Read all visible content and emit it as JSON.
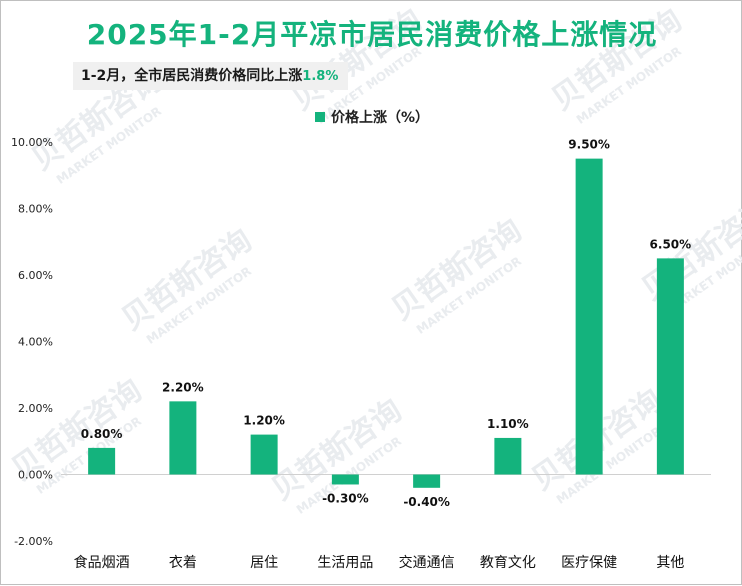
{
  "title": "2025年1-2月平凉市居民消费价格上涨情况",
  "subtitle": {
    "text": "1-2月，全市居民消费价格同比上涨",
    "highlight": "1.8%"
  },
  "watermark": {
    "cn": "贝哲斯咨询",
    "en": "MARKET MONITOR"
  },
  "chart_data": {
    "type": "bar",
    "categories": [
      "食品烟酒",
      "衣着",
      "居住",
      "生活用品",
      "交通通信",
      "教育文化",
      "医疗保健",
      "其他"
    ],
    "series": [
      {
        "name": "价格上涨（%）",
        "values": [
          0.8,
          2.2,
          1.2,
          -0.3,
          -0.4,
          1.1,
          9.5,
          6.5
        ]
      }
    ],
    "data_labels": [
      "0.80%",
      "2.20%",
      "1.20%",
      "-0.30%",
      "-0.40%",
      "1.10%",
      "9.50%",
      "6.50%"
    ],
    "y_ticks": [
      "-2.00%",
      "0.00%",
      "2.00%",
      "4.00%",
      "6.00%",
      "8.00%",
      "10.00%"
    ],
    "ylim": [
      -2,
      10
    ],
    "grid": false,
    "legend": "top-center",
    "colors": {
      "bar": "#14b37d",
      "title": "#14b37d",
      "axis": "#d0d0d0"
    }
  }
}
